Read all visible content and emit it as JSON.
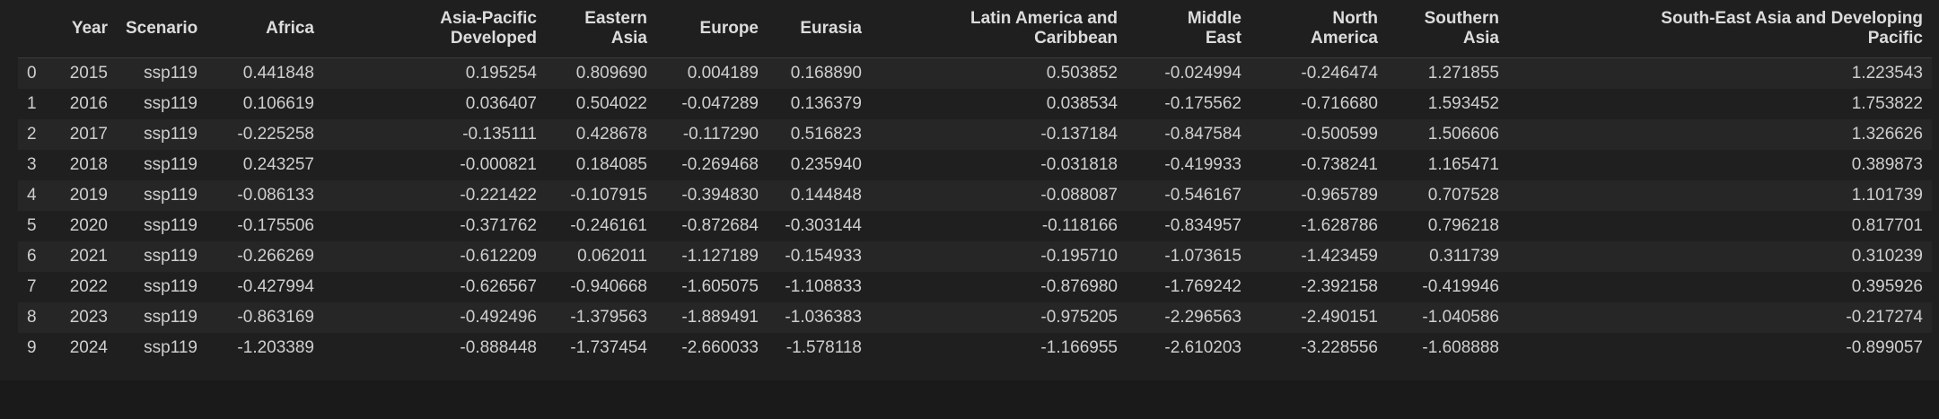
{
  "columns": {
    "index": "",
    "year": "Year",
    "scenario": "Scenario",
    "africa": "Africa",
    "apd_1": "Asia-Pacific",
    "apd_2": "Developed",
    "ea_1": "Eastern",
    "ea_2": "Asia",
    "europe": "Europe",
    "eurasia": "Eurasia",
    "lac_1": "Latin America and",
    "lac_2": "Caribbean",
    "me_1": "Middle",
    "me_2": "East",
    "na_1": "North",
    "na_2": "America",
    "sa_1": "Southern",
    "sa_2": "Asia",
    "sea_1": "South-East Asia and Developing",
    "sea_2": "Pacific"
  },
  "rows": [
    {
      "idx": "0",
      "year": "2015",
      "scenario": "ssp119",
      "africa": "0.441848",
      "apd": "0.195254",
      "ea": "0.809690",
      "europe": "0.004189",
      "eurasia": "0.168890",
      "lac": "0.503852",
      "me": "-0.024994",
      "na": "-0.246474",
      "sa": "1.271855",
      "sea": "1.223543"
    },
    {
      "idx": "1",
      "year": "2016",
      "scenario": "ssp119",
      "africa": "0.106619",
      "apd": "0.036407",
      "ea": "0.504022",
      "europe": "-0.047289",
      "eurasia": "0.136379",
      "lac": "0.038534",
      "me": "-0.175562",
      "na": "-0.716680",
      "sa": "1.593452",
      "sea": "1.753822"
    },
    {
      "idx": "2",
      "year": "2017",
      "scenario": "ssp119",
      "africa": "-0.225258",
      "apd": "-0.135111",
      "ea": "0.428678",
      "europe": "-0.117290",
      "eurasia": "0.516823",
      "lac": "-0.137184",
      "me": "-0.847584",
      "na": "-0.500599",
      "sa": "1.506606",
      "sea": "1.326626"
    },
    {
      "idx": "3",
      "year": "2018",
      "scenario": "ssp119",
      "africa": "0.243257",
      "apd": "-0.000821",
      "ea": "0.184085",
      "europe": "-0.269468",
      "eurasia": "0.235940",
      "lac": "-0.031818",
      "me": "-0.419933",
      "na": "-0.738241",
      "sa": "1.165471",
      "sea": "0.389873"
    },
    {
      "idx": "4",
      "year": "2019",
      "scenario": "ssp119",
      "africa": "-0.086133",
      "apd": "-0.221422",
      "ea": "-0.107915",
      "europe": "-0.394830",
      "eurasia": "0.144848",
      "lac": "-0.088087",
      "me": "-0.546167",
      "na": "-0.965789",
      "sa": "0.707528",
      "sea": "1.101739"
    },
    {
      "idx": "5",
      "year": "2020",
      "scenario": "ssp119",
      "africa": "-0.175506",
      "apd": "-0.371762",
      "ea": "-0.246161",
      "europe": "-0.872684",
      "eurasia": "-0.303144",
      "lac": "-0.118166",
      "me": "-0.834957",
      "na": "-1.628786",
      "sa": "0.796218",
      "sea": "0.817701"
    },
    {
      "idx": "6",
      "year": "2021",
      "scenario": "ssp119",
      "africa": "-0.266269",
      "apd": "-0.612209",
      "ea": "0.062011",
      "europe": "-1.127189",
      "eurasia": "-0.154933",
      "lac": "-0.195710",
      "me": "-1.073615",
      "na": "-1.423459",
      "sa": "0.311739",
      "sea": "0.310239"
    },
    {
      "idx": "7",
      "year": "2022",
      "scenario": "ssp119",
      "africa": "-0.427994",
      "apd": "-0.626567",
      "ea": "-0.940668",
      "europe": "-1.605075",
      "eurasia": "-1.108833",
      "lac": "-0.876980",
      "me": "-1.769242",
      "na": "-2.392158",
      "sa": "-0.419946",
      "sea": "0.395926"
    },
    {
      "idx": "8",
      "year": "2023",
      "scenario": "ssp119",
      "africa": "-0.863169",
      "apd": "-0.492496",
      "ea": "-1.379563",
      "europe": "-1.889491",
      "eurasia": "-1.036383",
      "lac": "-0.975205",
      "me": "-2.296563",
      "na": "-2.490151",
      "sa": "-1.040586",
      "sea": "-0.217274"
    },
    {
      "idx": "9",
      "year": "2024",
      "scenario": "ssp119",
      "africa": "-1.203389",
      "apd": "-0.888448",
      "ea": "-1.737454",
      "europe": "-2.660033",
      "eurasia": "-1.578118",
      "lac": "-1.166955",
      "me": "-2.610203",
      "na": "-3.228556",
      "sa": "-1.608888",
      "sea": "-0.899057"
    }
  ]
}
